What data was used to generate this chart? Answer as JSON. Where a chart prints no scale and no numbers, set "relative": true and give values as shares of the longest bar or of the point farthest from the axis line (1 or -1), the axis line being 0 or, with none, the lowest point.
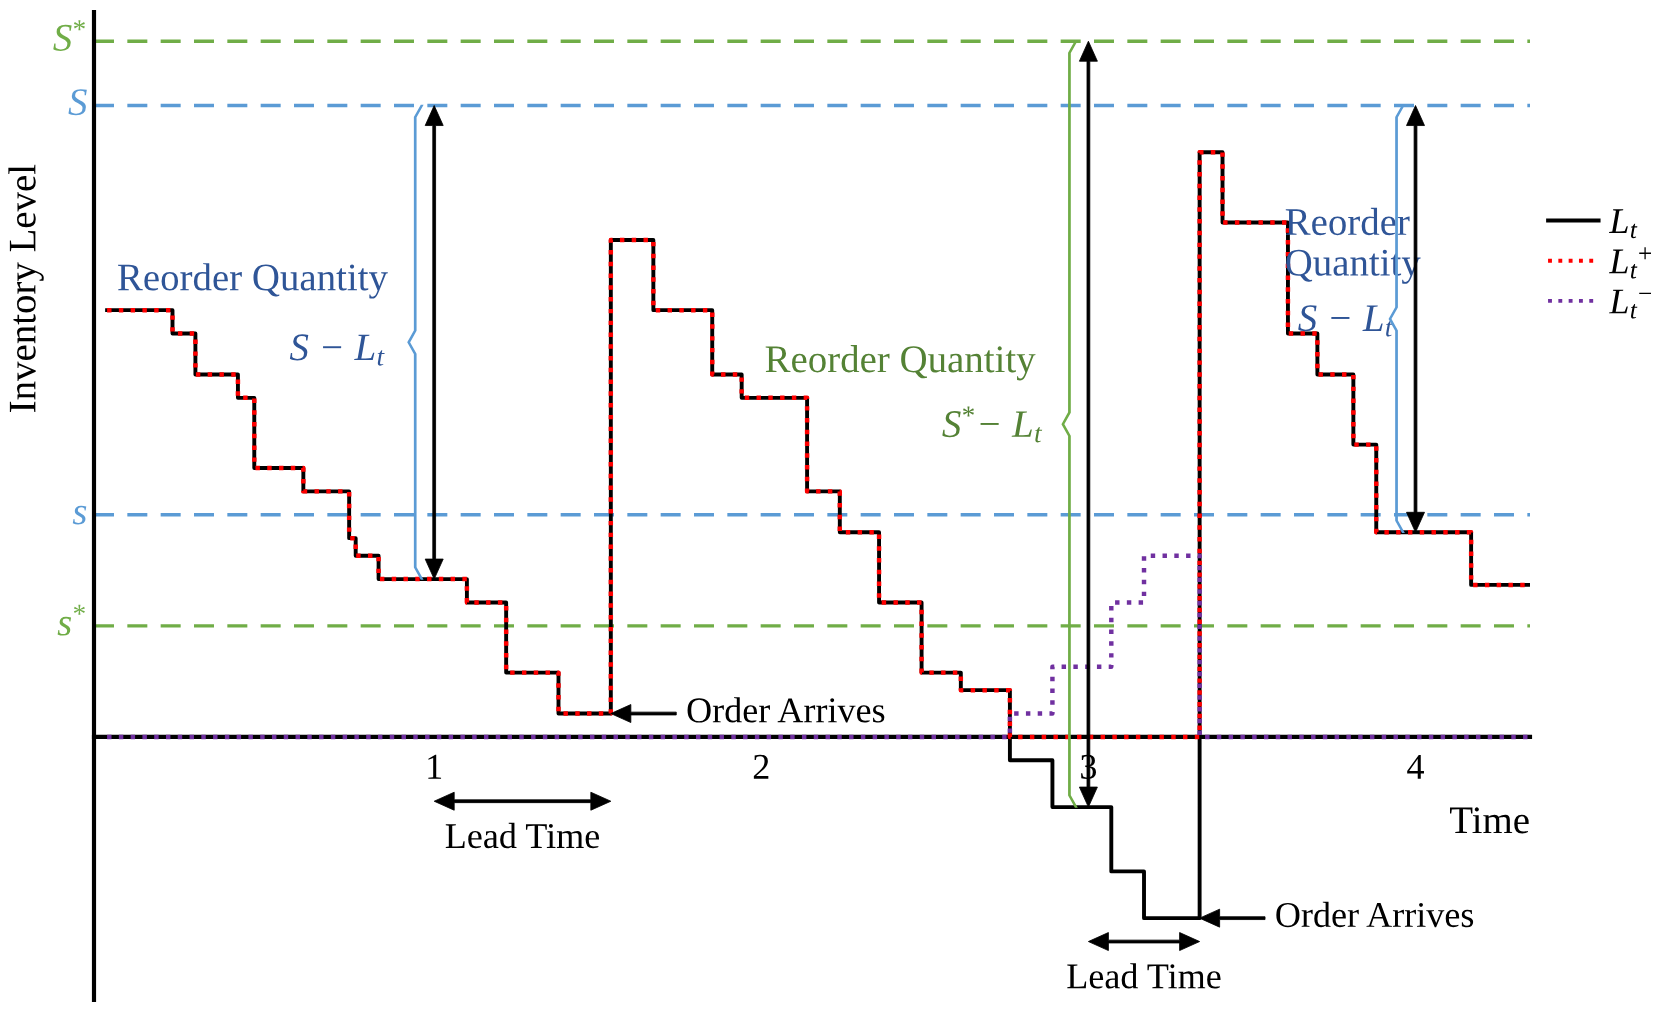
{
  "chart_data": {
    "type": "step",
    "relative": true,
    "xlabel": "Time",
    "ylabel": "Inventory Level",
    "x": [
      0,
      0.2,
      0.27,
      0.4,
      0.45,
      0.6,
      0.74,
      0.76,
      0.83,
      1.1,
      1.22,
      1.38,
      1.54,
      1.67,
      1.85,
      1.94,
      2.14,
      2.24,
      2.36,
      2.49,
      2.61,
      2.76,
      2.89,
      3.07,
      3.17,
      3.34,
      3.41,
      3.61,
      3.7,
      3.81,
      3.88,
      4.17,
      4.35
    ],
    "xlim": [
      -0.04,
      4.35
    ],
    "xticks": [
      1,
      2,
      3,
      4
    ],
    "series": [
      {
        "name": "L$_{t}$",
        "color": "#000000",
        "line_style": "solid",
        "values": [
          0.73,
          0.69,
          0.62,
          0.58,
          0.46,
          0.42,
          0.34,
          0.31,
          0.27,
          0.23,
          0.11,
          0.04,
          0.85,
          0.73,
          0.62,
          0.58,
          0.42,
          0.35,
          0.23,
          0.11,
          0.08,
          -0.04,
          -0.12,
          -0.23,
          -0.31,
          1,
          0.88,
          0.69,
          0.62,
          0.5,
          0.35,
          0.26,
          0.26
        ]
      },
      {
        "name": "L$_{t}$$^{+}$",
        "color": "#ff0000",
        "line_style": "dotted",
        "values": [
          0.73,
          0.69,
          0.62,
          0.58,
          0.46,
          0.42,
          0.34,
          0.31,
          0.27,
          0.23,
          0.11,
          0.04,
          0.85,
          0.73,
          0.62,
          0.58,
          0.42,
          0.35,
          0.23,
          0.11,
          0.08,
          0,
          0,
          0,
          0,
          1,
          0.88,
          0.69,
          0.62,
          0.5,
          0.35,
          0.26,
          0.26
        ]
      },
      {
        "name": "L$_{t}$$^{−}$",
        "color": "#7030a0",
        "line_style": "dotted",
        "values": [
          0,
          0,
          0,
          0,
          0,
          0,
          0,
          0,
          0,
          0,
          0,
          0,
          0,
          0,
          0,
          0,
          0,
          0,
          0,
          0,
          0,
          0.04,
          0.12,
          0.23,
          0.31,
          0,
          0,
          0,
          0,
          0,
          0,
          0,
          0
        ]
      }
    ],
    "ref_lines": [
      {
        "axis": "y",
        "value": 1.19,
        "label": "S$^{*}$",
        "color": "#70ad47",
        "line_style": "dashed"
      },
      {
        "axis": "y",
        "value": 1.08,
        "label": "S",
        "color": "#5b9bd5",
        "line_style": "dashed"
      },
      {
        "axis": "y",
        "value": 0.38,
        "label": "s",
        "color": "#5b9bd5",
        "line_style": "dashed"
      },
      {
        "axis": "y",
        "value": 0.19,
        "label": "s$^{*}$",
        "color": "#70ad47",
        "line_style": "dashed"
      }
    ],
    "annotations": [
      "Reorder Quantity",
      "S − L$_{t}$",
      "Reorder Quantity",
      "S$^{*}$− L$_{t}$",
      "Reorder\nQuantity",
      "S − L$_{t}$",
      {
        "text": "Order Arrives",
        "x": 1.54,
        "y": 0.04
      },
      {
        "text": "Order Arrives",
        "x": 3.34,
        "y": -0.31
      },
      "Lead Time",
      "Lead Time"
    ],
    "legend": "top right"
  }
}
